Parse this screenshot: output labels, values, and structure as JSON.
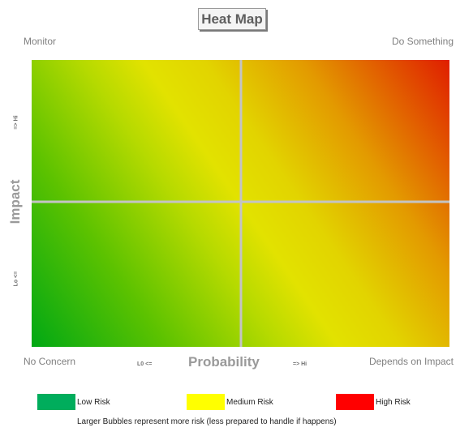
{
  "title": "Heat Map",
  "quadrant_labels": {
    "top_left": "Monitor",
    "top_right": "Do Something",
    "bottom_left": "No Concern",
    "bottom_right": "Depends on Impact"
  },
  "chart_data": {
    "type": "heatmap",
    "title": "Heat Map",
    "xlabel": "Probability",
    "ylabel": "Impact",
    "x_ticks": [
      "L0 <=",
      "=> Hi"
    ],
    "y_ticks": [
      "Lo <=",
      "=> Hi"
    ],
    "quadrants": 4,
    "gradient": {
      "low_corner": "bottom-left",
      "high_corner": "top-right",
      "colors": {
        "low": "#00a814",
        "medium": "#e2e200",
        "high": "#e01e00"
      }
    },
    "legend": [
      {
        "label": "Low Risk",
        "color": "#00ad5c"
      },
      {
        "label": "Medium Risk",
        "color": "#ffff00"
      },
      {
        "label": "High Risk",
        "color": "#ff0000"
      }
    ],
    "legend_position": "bottom",
    "note": "Larger Bubbles represent more risk (less prepared to handle if happens)"
  }
}
